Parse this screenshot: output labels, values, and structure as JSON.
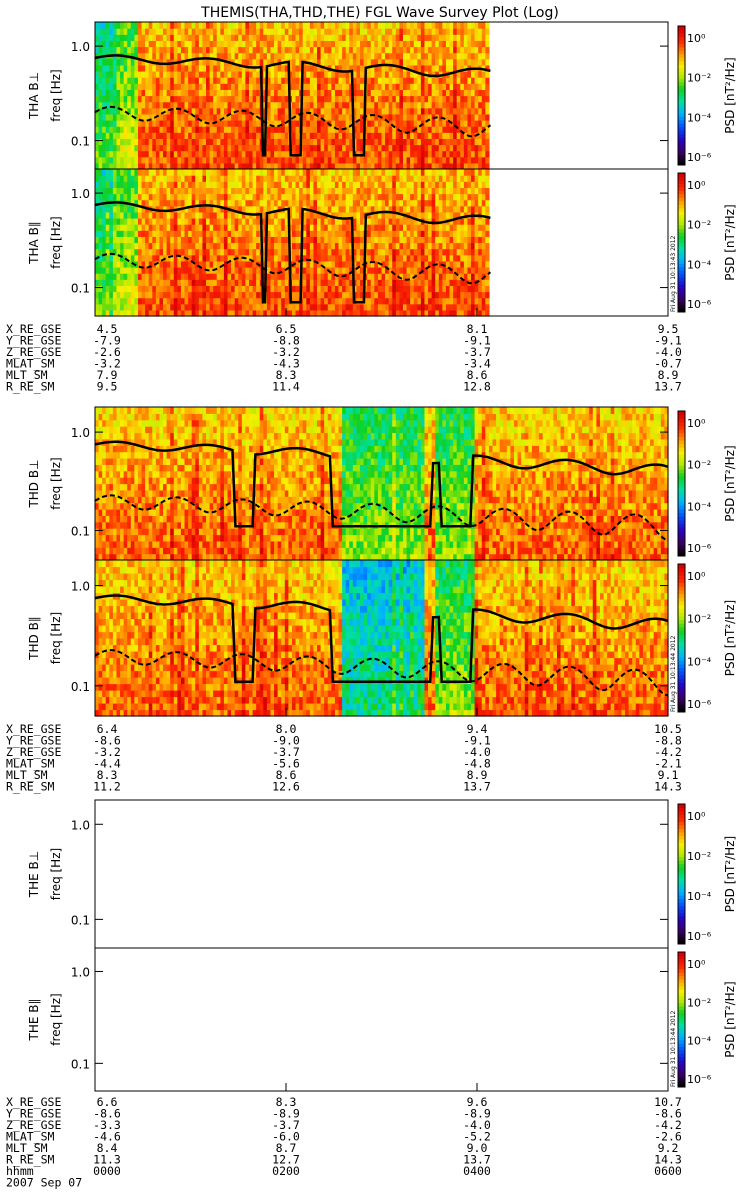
{
  "chart_data": {
    "type": "heatmap",
    "title": "THEMIS(THA,THD,THE) FGL Wave Survey Plot (Log)",
    "x_axis": {
      "label": "hhmm",
      "date": "2007 Sep 07",
      "ticks": [
        "0000",
        "0200",
        "0400",
        "0600"
      ]
    },
    "y_axis": {
      "scale": "log",
      "ticks": [
        "1.0",
        "0.1"
      ],
      "range_hz": [
        0.05,
        1.8
      ]
    },
    "colorbar": {
      "label": "PSD [nT²/Hz]",
      "scale": "log",
      "ticks": [
        "10⁰",
        "10⁻²",
        "10⁻⁴",
        "10⁻⁶"
      ]
    },
    "probes": [
      {
        "probe": "THA",
        "has_data": true,
        "data_end_frac": 0.69,
        "stamp": "Fri Aug 31 10:13:43 2012",
        "panels": [
          {
            "label": "THA B⊥",
            "units": "freq [Hz]"
          },
          {
            "label": "THA B∥",
            "units": "freq [Hz]"
          }
        ],
        "ephemeris": [
          {
            "name": "X_RE_GSE",
            "values": [
              "4.5",
              "6.5",
              "8.1",
              "9.5"
            ]
          },
          {
            "name": "Y_RE_GSE",
            "values": [
              "-7.9",
              "-8.8",
              "-9.1",
              "-9.1"
            ]
          },
          {
            "name": "Z_RE_GSE",
            "values": [
              "-2.6",
              "-3.2",
              "-3.7",
              "-4.0"
            ]
          },
          {
            "name": "MLAT_SM",
            "values": [
              "-3.2",
              "-4.3",
              "-3.4",
              "-0.7"
            ]
          },
          {
            "name": "MLT_SM",
            "values": [
              "7.9",
              "8.3",
              "8.6",
              "8.9"
            ]
          },
          {
            "name": "R_RE_SM",
            "values": [
              "9.5",
              "11.4",
              "12.8",
              "13.7"
            ]
          }
        ]
      },
      {
        "probe": "THD",
        "has_data": true,
        "data_end_frac": 1.0,
        "stamp": "Fri Aug 31 10:13:44 2012",
        "panels": [
          {
            "label": "THD B⊥",
            "units": "freq [Hz]"
          },
          {
            "label": "THD B∥",
            "units": "freq [Hz]"
          }
        ],
        "ephemeris": [
          {
            "name": "X_RE_GSE",
            "values": [
              "6.4",
              "8.0",
              "9.4",
              "10.5"
            ]
          },
          {
            "name": "Y_RE_GSE",
            "values": [
              "-8.6",
              "-9.0",
              "-9.1",
              "-8.8"
            ]
          },
          {
            "name": "Z_RE_GSE",
            "values": [
              "-3.2",
              "-3.7",
              "-4.0",
              "-4.2"
            ]
          },
          {
            "name": "MLAT_SM",
            "values": [
              "-4.4",
              "-5.6",
              "-4.8",
              "-2.1"
            ]
          },
          {
            "name": "MLT_SM",
            "values": [
              "8.3",
              "8.6",
              "8.9",
              "9.1"
            ]
          },
          {
            "name": "R_RE_SM",
            "values": [
              "11.2",
              "12.6",
              "13.7",
              "14.3"
            ]
          }
        ]
      },
      {
        "probe": "THE",
        "has_data": false,
        "data_end_frac": 0,
        "stamp": "Fri Aug 31 10:13:44 2012",
        "panels": [
          {
            "label": "THE B⊥",
            "units": "freq [Hz]"
          },
          {
            "label": "THE B∥",
            "units": "freq [Hz]"
          }
        ],
        "ephemeris": [
          {
            "name": "X_RE_GSE",
            "values": [
              "6.6",
              "8.3",
              "9.6",
              "10.7"
            ]
          },
          {
            "name": "Y_RE_GSE",
            "values": [
              "-8.6",
              "-8.9",
              "-8.9",
              "-8.6"
            ]
          },
          {
            "name": "Z_RE_GSE",
            "values": [
              "-3.3",
              "-3.7",
              "-4.0",
              "-4.2"
            ]
          },
          {
            "name": "MLAT_SM",
            "values": [
              "-4.6",
              "-6.0",
              "-5.2",
              "-2.6"
            ]
          },
          {
            "name": "MLT_SM",
            "values": [
              "8.4",
              "8.7",
              "9.0",
              "9.2"
            ]
          },
          {
            "name": "R_RE_SM",
            "values": [
              "11.3",
              "12.7",
              "13.7",
              "14.3"
            ]
          }
        ]
      }
    ]
  }
}
